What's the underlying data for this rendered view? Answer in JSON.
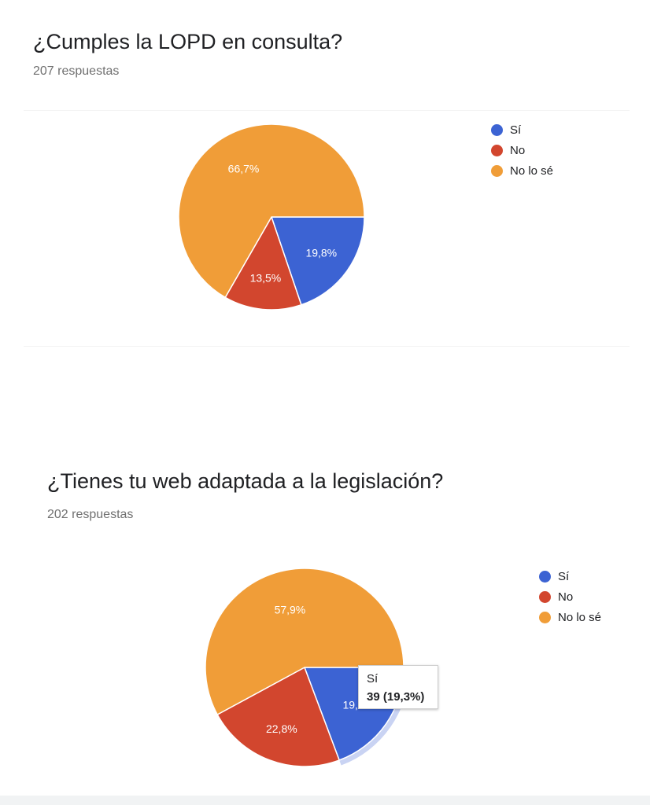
{
  "chart_data": [
    {
      "type": "pie",
      "title": "¿Cumples la LOPD en consulta?",
      "subtitle": "207 respuestas",
      "categories": [
        "Sí",
        "No",
        "No lo sé"
      ],
      "values": [
        19.8,
        13.5,
        66.7
      ],
      "labels": [
        "19,8%",
        "13,5%",
        "66,7%"
      ],
      "colors": [
        "#3c63d3",
        "#d2462e",
        "#f09d38"
      ],
      "legend_position": "top-right"
    },
    {
      "type": "pie",
      "title": "¿Tienes tu web adaptada a la legislación?",
      "subtitle": "202 respuestas",
      "categories": [
        "Sí",
        "No",
        "No lo sé"
      ],
      "values": [
        19.3,
        22.8,
        57.9
      ],
      "labels": [
        "19,3%",
        "22,8%",
        "57,9%"
      ],
      "colors": [
        "#3c63d3",
        "#d2462e",
        "#f09d38"
      ],
      "legend_position": "top-right",
      "tooltip": {
        "label": "Sí",
        "value": "39 (19,3%)"
      }
    }
  ]
}
